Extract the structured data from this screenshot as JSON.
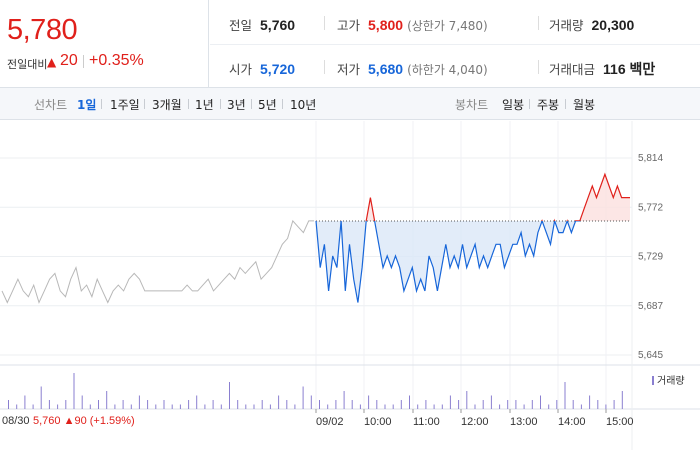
{
  "quote": {
    "price": "5,780",
    "change_label": "전일대비",
    "change_icon": "up-triangle",
    "change_value": "20",
    "change_percent": "+0.35%"
  },
  "stats": {
    "prev_close": {
      "label": "전일",
      "value": "5,760"
    },
    "high": {
      "label": "고가",
      "value": "5,800",
      "sub": "(상한가 7,480)"
    },
    "volume": {
      "label": "거래량",
      "value": "20,300"
    },
    "open": {
      "label": "시가",
      "value": "5,720"
    },
    "low": {
      "label": "저가",
      "value": "5,680",
      "sub": "(하한가 4,040)"
    },
    "amount": {
      "label": "거래대금",
      "value": "116 백만"
    }
  },
  "line_tabs": {
    "label": "선차트",
    "items": [
      "1일",
      "1주일",
      "3개월",
      "1년",
      "3년",
      "5년",
      "10년"
    ],
    "active": "1일"
  },
  "candle_tabs": {
    "label": "봉차트",
    "items": [
      "일봉",
      "주봉",
      "월봉"
    ]
  },
  "colors": {
    "up": "#e0201b",
    "down": "#1766d9",
    "prev_day": "#b8b8b8",
    "volume": "#8a7fd0"
  },
  "chart_data": {
    "type": "line",
    "y_ticks": [
      "5,814",
      "5,772",
      "5,729",
      "5,687",
      "5,645"
    ],
    "ylim": [
      5645,
      5814
    ],
    "reference_price": 5760,
    "x_tick_labels": [
      "08/30",
      "09/02",
      "10:00",
      "11:00",
      "12:00",
      "13:00",
      "14:00",
      "15:00"
    ],
    "series": [
      {
        "role": "prev_day",
        "values": [
          5700,
          5690,
          5700,
          5710,
          5700,
          5695,
          5705,
          5690,
          5700,
          5710,
          5715,
          5700,
          5695,
          5710,
          5720,
          5700,
          5705,
          5695,
          5710,
          5700,
          5690,
          5700,
          5705,
          5700,
          5710,
          5715,
          5710,
          5700,
          5700,
          5700,
          5700,
          5700,
          5700,
          5700,
          5700,
          5705,
          5700,
          5700,
          5705,
          5710,
          5700,
          5705,
          5710,
          5715,
          5710,
          5720,
          5715,
          5720,
          5725,
          5710,
          5715,
          5720,
          5730,
          5740,
          5745,
          5760,
          5755,
          5750,
          5760,
          5760
        ]
      },
      {
        "role": "today",
        "values": [
          5760,
          5720,
          5740,
          5700,
          5730,
          5720,
          5760,
          5700,
          5740,
          5710,
          5690,
          5720,
          5760,
          5780,
          5760,
          5740,
          5720,
          5730,
          5720,
          5730,
          5720,
          5700,
          5710,
          5720,
          5700,
          5710,
          5700,
          5730,
          5720,
          5700,
          5720,
          5740,
          5720,
          5730,
          5720,
          5740,
          5720,
          5730,
          5740,
          5720,
          5730,
          5720,
          5730,
          5740,
          5740,
          5720,
          5730,
          5740,
          5740,
          5750,
          5730,
          5740,
          5730,
          5750,
          5760,
          5750,
          5740,
          5760,
          5750,
          5750,
          5760,
          5750,
          5760,
          5760,
          5770,
          5780,
          5790,
          5780,
          5790,
          5800,
          5790,
          5780,
          5790,
          5780,
          5780,
          5780
        ]
      }
    ],
    "volume": [
      2,
      1,
      3,
      1,
      5,
      2,
      1,
      2,
      8,
      3,
      1,
      2,
      4,
      1,
      2,
      1,
      3,
      2,
      1,
      2,
      1,
      1,
      2,
      3,
      1,
      2,
      1,
      6,
      2,
      1,
      1,
      2,
      1,
      3,
      2,
      1,
      5,
      3,
      2,
      1,
      2,
      4,
      2,
      1,
      3,
      2,
      1,
      1,
      2,
      3,
      1,
      2,
      1,
      1,
      3,
      2,
      4,
      1,
      2,
      3,
      1,
      2,
      2,
      1,
      2,
      3,
      1,
      2,
      6,
      2,
      1,
      3,
      2,
      1,
      2,
      4
    ],
    "volume_legend": "거래량",
    "bottom_date": "08/30",
    "bottom_info": "5,760 ▲90 (+1.59%)"
  }
}
